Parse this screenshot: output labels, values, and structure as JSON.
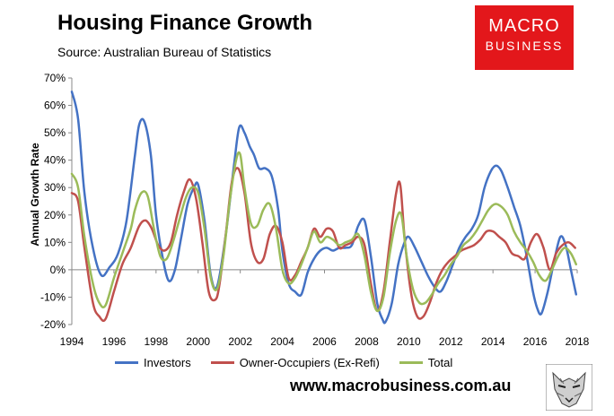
{
  "header": {
    "title": "Housing Finance Growth",
    "subtitle": "Source: Australian Bureau of Statistics"
  },
  "logo": {
    "line1": "MACRO",
    "line2": "BUSINESS"
  },
  "footer": {
    "url": "www.macrobusiness.com.au"
  },
  "chart_data": {
    "type": "line",
    "title": "Housing Finance Growth",
    "ylabel": "Annual Growth Rate",
    "xlabel": "",
    "xlim": [
      1994,
      2018
    ],
    "ylim": [
      -20,
      70
    ],
    "x_ticks": [
      "1994",
      "1996",
      "1998",
      "2000",
      "2002",
      "2004",
      "2006",
      "2008",
      "2010",
      "2012",
      "2014",
      "2016",
      "2018"
    ],
    "y_ticks": [
      "70%",
      "60%",
      "50%",
      "40%",
      "30%",
      "20%",
      "10%",
      "0%",
      "-10%",
      "-20%"
    ],
    "grid": false,
    "legend_position": "bottom",
    "series": [
      {
        "name": "Investors",
        "color": "#4472c4",
        "x": [
          1994.0,
          1994.3,
          1994.6,
          1995.0,
          1995.4,
          1995.8,
          1996.2,
          1996.6,
          1997.0,
          1997.2,
          1997.45,
          1997.75,
          1998.0,
          1998.3,
          1998.6,
          1998.9,
          1999.2,
          1999.5,
          1999.8,
          2000.0,
          2000.3,
          2000.6,
          2000.9,
          2001.3,
          2001.7,
          2001.95,
          2002.2,
          2002.45,
          2002.65,
          2002.9,
          2003.2,
          2003.5,
          2003.8,
          2004.0,
          2004.3,
          2004.6,
          2004.9,
          2005.2,
          2005.5,
          2005.8,
          2006.1,
          2006.4,
          2006.7,
          2007.0,
          2007.3,
          2007.6,
          2007.9,
          2008.2,
          2008.5,
          2008.75,
          2008.9,
          2009.2,
          2009.5,
          2009.8,
          2010.0,
          2010.3,
          2010.6,
          2010.9,
          2011.2,
          2011.5,
          2011.8,
          2012.1,
          2012.4,
          2012.7,
          2013.0,
          2013.3,
          2013.6,
          2013.9,
          2014.15,
          2014.4,
          2014.7,
          2015.0,
          2015.3,
          2015.6,
          2015.9,
          2016.1,
          2016.3,
          2016.6,
          2016.9,
          2017.2,
          2017.45,
          2017.7,
          2017.95
        ],
        "values": [
          65,
          55,
          28,
          8,
          -2,
          1,
          6,
          18,
          42,
          53,
          54,
          42,
          20,
          5,
          -4,
          0,
          12,
          24,
          30,
          31,
          18,
          -2,
          -6,
          12,
          38,
          52,
          50,
          45,
          42,
          37,
          37,
          34,
          22,
          7,
          -5,
          -8,
          -9,
          -1,
          4,
          7,
          8,
          7,
          8,
          8,
          9,
          16,
          18,
          5,
          -12,
          -18,
          -19,
          -12,
          2,
          10,
          12,
          8,
          3,
          -2,
          -6,
          -8,
          -4,
          2,
          8,
          12,
          15,
          20,
          30,
          36,
          38,
          36,
          30,
          23,
          16,
          5,
          -8,
          -14,
          -16,
          -8,
          3,
          12,
          9,
          0,
          -9
        ]
      },
      {
        "name": "Owner-Occupiers (Ex-Refi)",
        "color": "#c0504d",
        "x": [
          1994.0,
          1994.3,
          1994.6,
          1995.0,
          1995.3,
          1995.6,
          1996.0,
          1996.4,
          1996.8,
          1997.2,
          1997.5,
          1997.8,
          1998.1,
          1998.4,
          1998.7,
          1999.0,
          1999.3,
          1999.6,
          1999.9,
          2000.2,
          2000.5,
          2000.8,
          2001.0,
          2001.3,
          2001.6,
          2001.9,
          2002.2,
          2002.5,
          2002.8,
          2003.1,
          2003.4,
          2003.7,
          2004.0,
          2004.3,
          2004.6,
          2004.9,
          2005.2,
          2005.5,
          2005.8,
          2006.1,
          2006.4,
          2006.7,
          2007.0,
          2007.3,
          2007.6,
          2007.9,
          2008.2,
          2008.5,
          2008.8,
          2009.1,
          2009.4,
          2009.6,
          2009.8,
          2010.1,
          2010.4,
          2010.7,
          2011.0,
          2011.3,
          2011.6,
          2011.9,
          2012.2,
          2012.5,
          2012.8,
          2013.1,
          2013.4,
          2013.7,
          2014.0,
          2014.3,
          2014.6,
          2014.9,
          2015.2,
          2015.5,
          2015.8,
          2016.1,
          2016.4,
          2016.7,
          2017.0,
          2017.3,
          2017.6,
          2017.9
        ],
        "values": [
          28,
          25,
          8,
          -12,
          -17,
          -18,
          -8,
          2,
          8,
          16,
          18,
          15,
          9,
          7,
          10,
          20,
          28,
          33,
          26,
          10,
          -8,
          -11,
          -6,
          12,
          32,
          37,
          28,
          10,
          3,
          4,
          13,
          16,
          10,
          -3,
          -2,
          3,
          8,
          15,
          12,
          15,
          14,
          8,
          9,
          10,
          12,
          9,
          -5,
          -15,
          -8,
          10,
          28,
          31,
          12,
          -8,
          -17,
          -17,
          -12,
          -5,
          0,
          3,
          5,
          7,
          8,
          9,
          11,
          14,
          14,
          12,
          10,
          6,
          5,
          4,
          10,
          13,
          8,
          0,
          6,
          9,
          10,
          8
        ]
      },
      {
        "name": "Total",
        "color": "#9bbb59",
        "x": [
          1994.0,
          1994.3,
          1994.6,
          1995.0,
          1995.3,
          1995.6,
          1996.0,
          1996.4,
          1996.8,
          1997.0,
          1997.3,
          1997.6,
          1997.9,
          1998.2,
          1998.5,
          1998.8,
          1999.1,
          1999.4,
          1999.7,
          2000.0,
          2000.3,
          2000.6,
          2000.9,
          2001.2,
          2001.5,
          2001.8,
          2002.0,
          2002.2,
          2002.5,
          2002.8,
          2003.1,
          2003.4,
          2003.7,
          2004.0,
          2004.3,
          2004.6,
          2004.9,
          2005.2,
          2005.5,
          2005.8,
          2006.1,
          2006.4,
          2006.7,
          2007.0,
          2007.3,
          2007.6,
          2007.9,
          2008.2,
          2008.5,
          2008.8,
          2009.1,
          2009.4,
          2009.65,
          2009.9,
          2010.2,
          2010.5,
          2010.8,
          2011.1,
          2011.4,
          2011.7,
          2012.0,
          2012.3,
          2012.6,
          2012.9,
          2013.2,
          2013.5,
          2013.8,
          2014.1,
          2014.4,
          2014.7,
          2015.0,
          2015.3,
          2015.6,
          2015.9,
          2016.2,
          2016.5,
          2016.8,
          2017.1,
          2017.4,
          2017.7,
          2017.95
        ],
        "values": [
          35,
          30,
          12,
          -5,
          -12,
          -13,
          -3,
          6,
          15,
          22,
          28,
          27,
          15,
          5,
          4,
          10,
          18,
          26,
          30,
          28,
          15,
          -3,
          -7,
          5,
          25,
          40,
          42,
          30,
          17,
          16,
          22,
          24,
          15,
          0,
          -5,
          -3,
          2,
          8,
          14,
          10,
          12,
          11,
          9,
          10,
          11,
          13,
          5,
          -8,
          -15,
          -10,
          6,
          18,
          20,
          5,
          -7,
          -12,
          -12,
          -9,
          -5,
          -2,
          2,
          5,
          9,
          11,
          14,
          18,
          22,
          24,
          23,
          20,
          14,
          10,
          7,
          3,
          -2,
          -4,
          0,
          5,
          8,
          6,
          2
        ]
      }
    ]
  }
}
